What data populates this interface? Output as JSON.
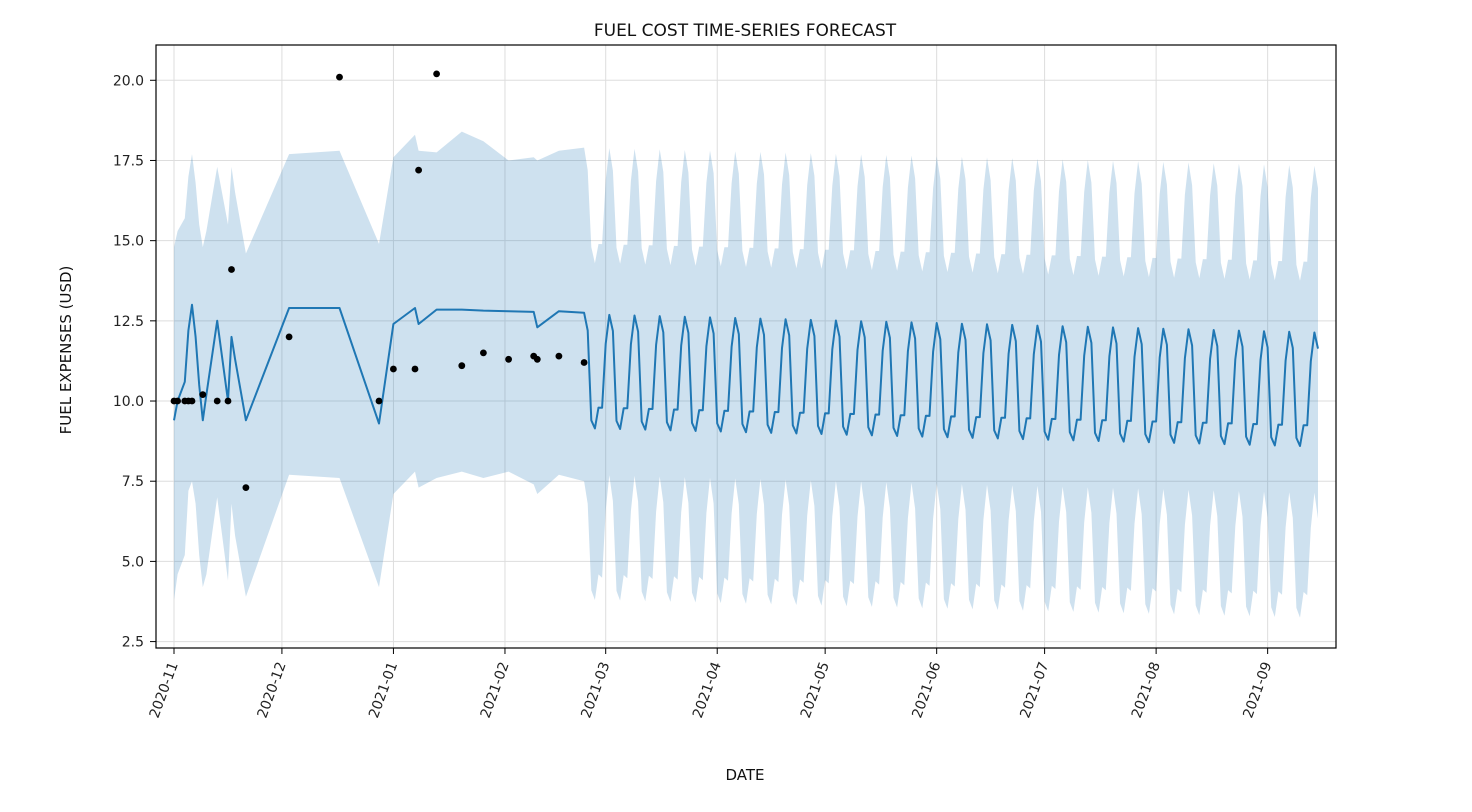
{
  "chart_data": {
    "type": "line",
    "title": "FUEL COST TIME-SERIES FORECAST",
    "xlabel": "DATE",
    "ylabel": "FUEL EXPENSES (USD)",
    "x_type": "date",
    "xlim": [
      "2020-10-27",
      "2021-09-20"
    ],
    "ylim": [
      2.3,
      21.1
    ],
    "grid": true,
    "colors": {
      "forecast": "#1f77b4",
      "band": "#1f77b4",
      "observed": "#000000",
      "grid": "#dddddd"
    },
    "x_ticks": [
      "2020-11",
      "2020-12",
      "2021-01",
      "2021-02",
      "2021-03",
      "2021-04",
      "2021-05",
      "2021-06",
      "2021-07",
      "2021-08",
      "2021-09"
    ],
    "y_ticks": [
      "2.5",
      "5.0",
      "7.5",
      "10.0",
      "12.5",
      "15.0",
      "17.5",
      "20.0"
    ],
    "series": [
      {
        "role": "observed",
        "style": "scatter",
        "points": [
          [
            "2020-11-01",
            10.0
          ],
          [
            "2020-11-02",
            10.0
          ],
          [
            "2020-11-04",
            10.0
          ],
          [
            "2020-11-05",
            10.0
          ],
          [
            "2020-11-06",
            10.0
          ],
          [
            "2020-11-09",
            10.2
          ],
          [
            "2020-11-13",
            10.0
          ],
          [
            "2020-11-16",
            10.0
          ],
          [
            "2020-11-17",
            14.1
          ],
          [
            "2020-11-21",
            7.3
          ],
          [
            "2020-12-03",
            12.0
          ],
          [
            "2020-12-17",
            20.1
          ],
          [
            "2020-12-28",
            10.0
          ],
          [
            "2021-01-01",
            11.0
          ],
          [
            "2021-01-07",
            11.0
          ],
          [
            "2021-01-08",
            17.2
          ],
          [
            "2021-01-13",
            20.2
          ],
          [
            "2021-01-20",
            11.1
          ],
          [
            "2021-01-26",
            11.5
          ],
          [
            "2021-02-02",
            11.3
          ],
          [
            "2021-02-09",
            11.4
          ],
          [
            "2021-02-10",
            11.3
          ],
          [
            "2021-02-16",
            11.4
          ],
          [
            "2021-02-23",
            11.2
          ]
        ]
      },
      {
        "role": "forecast",
        "style": "line",
        "history": [
          [
            "2020-11-01",
            9.4,
            3.8,
            14.8
          ],
          [
            "2020-11-02",
            10.0,
            4.6,
            15.3
          ],
          [
            "2020-11-04",
            10.6,
            5.2,
            15.7
          ],
          [
            "2020-11-05",
            12.2,
            7.2,
            17.0
          ],
          [
            "2020-11-06",
            13.0,
            7.5,
            17.7
          ],
          [
            "2020-11-07",
            12.0,
            6.8,
            16.8
          ],
          [
            "2020-11-08",
            10.5,
            5.2,
            15.5
          ],
          [
            "2020-11-09",
            9.4,
            4.2,
            14.8
          ],
          [
            "2020-11-10",
            10.2,
            4.6,
            15.3
          ],
          [
            "2020-11-13",
            12.5,
            7.0,
            17.3
          ],
          [
            "2020-11-16",
            10.0,
            4.4,
            15.5
          ],
          [
            "2020-11-17",
            12.0,
            6.8,
            17.3
          ],
          [
            "2020-11-18",
            11.3,
            5.8,
            16.5
          ],
          [
            "2020-11-21",
            9.4,
            3.9,
            14.6
          ],
          [
            "2020-12-03",
            12.9,
            7.7,
            17.7
          ],
          [
            "2020-12-17",
            12.9,
            7.6,
            17.8
          ],
          [
            "2020-12-28",
            9.3,
            4.2,
            14.9
          ],
          [
            "2021-01-01",
            12.4,
            7.1,
            17.6
          ],
          [
            "2021-01-07",
            12.9,
            7.8,
            18.3
          ],
          [
            "2021-01-08",
            12.4,
            7.3,
            17.8
          ],
          [
            "2021-01-13",
            12.85,
            7.6,
            17.75
          ],
          [
            "2021-01-20",
            12.85,
            7.8,
            18.4
          ],
          [
            "2021-01-26",
            12.82,
            7.6,
            18.1
          ],
          [
            "2021-02-02",
            12.8,
            7.8,
            17.5
          ],
          [
            "2021-02-09",
            12.78,
            7.4,
            17.6
          ],
          [
            "2021-02-10",
            12.3,
            7.1,
            17.5
          ],
          [
            "2021-02-16",
            12.8,
            7.7,
            17.8
          ],
          [
            "2021-02-23",
            12.75,
            7.5,
            17.9
          ],
          [
            "2021-02-24",
            12.2,
            6.8,
            17.2
          ]
        ],
        "future": {
          "start": "2021-02-25",
          "end": "2021-09-15",
          "weekly_mean": [
            9.4,
            9.15,
            9.8,
            9.8,
            11.8,
            12.7,
            12.2
          ],
          "weekly_lower": [
            4.1,
            3.8,
            4.6,
            4.5,
            6.6,
            7.7,
            6.9
          ],
          "weekly_upper": [
            14.8,
            14.3,
            14.9,
            14.9,
            16.9,
            17.9,
            17.2
          ],
          "mean_drift_per_day": -0.0028
        }
      }
    ]
  }
}
